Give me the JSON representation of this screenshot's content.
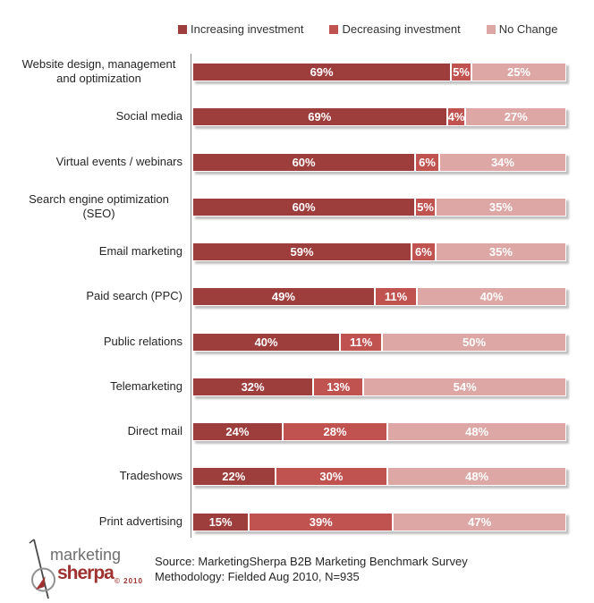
{
  "legend": [
    {
      "label": "Increasing investment",
      "color": "#9E3E3C"
    },
    {
      "label": "Decreasing investment",
      "color": "#C05250"
    },
    {
      "label": "No Change",
      "color": "#DCA7A4"
    }
  ],
  "chart_data": {
    "type": "bar",
    "orientation": "horizontal-stacked",
    "categories": [
      "Website design, management and optimization",
      "Social media",
      "Virtual events / webinars",
      "Search engine optimization (SEO)",
      "Email marketing",
      "Paid search (PPC)",
      "Public relations",
      "Telemarketing",
      "Direct mail",
      "Tradeshows",
      "Print advertising"
    ],
    "series": [
      {
        "name": "Increasing investment",
        "color": "#9E3E3C",
        "values": [
          69,
          69,
          60,
          60,
          59,
          49,
          40,
          32,
          24,
          22,
          15
        ]
      },
      {
        "name": "Decreasing investment",
        "color": "#C05250",
        "values": [
          5,
          4,
          6,
          5,
          6,
          11,
          11,
          13,
          28,
          30,
          39
        ]
      },
      {
        "name": "No Change",
        "color": "#DCA7A4",
        "values": [
          25,
          27,
          34,
          35,
          35,
          40,
          50,
          54,
          48,
          48,
          47
        ]
      }
    ],
    "value_suffix": "%",
    "legend_position": "top",
    "grid": false
  },
  "footer": {
    "source_line": "Source: MarketingSherpa B2B Marketing Benchmark Survey",
    "methodology_line": "Methodology: Fielded Aug 2010, N=935"
  },
  "logo": {
    "word1": "marketing",
    "word2": "sherpa",
    "copyright": "© 2010"
  }
}
